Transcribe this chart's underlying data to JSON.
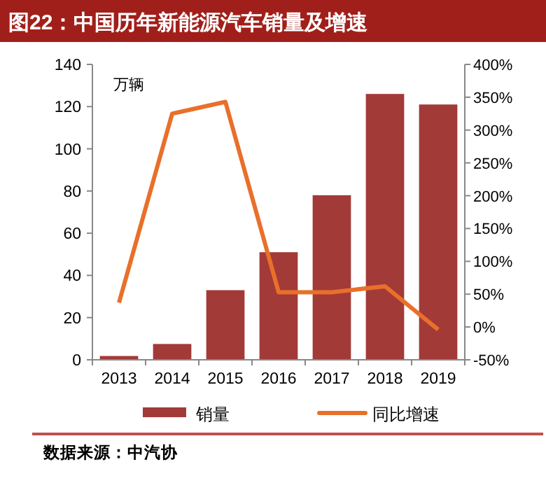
{
  "chart_data": {
    "type": "bar",
    "title": "图22：中国历年新能源汽车销量及增速",
    "ylabel": "万辆",
    "categories": [
      "2013",
      "2014",
      "2015",
      "2016",
      "2017",
      "2018",
      "2019"
    ],
    "series": [
      {
        "name": "销量",
        "color": "#a23a38",
        "values": [
          1.8,
          7.5,
          33,
          51,
          78,
          126,
          121
        ]
      },
      {
        "name": "同比增速",
        "type": "line",
        "axis": "y2",
        "color": "#e8702a",
        "values": [
          37,
          325,
          343,
          53,
          53,
          62,
          -4
        ]
      }
    ],
    "ylim": [
      0,
      140
    ],
    "yticks": [
      0,
      20,
      40,
      60,
      80,
      100,
      120,
      140
    ],
    "y2lim": [
      -50,
      400
    ],
    "y2ticks": [
      {
        "value": -50,
        "label": "-50%"
      },
      {
        "value": 0,
        "label": "0%"
      },
      {
        "value": 50,
        "label": "50%"
      },
      {
        "value": 100,
        "label": "100%"
      },
      {
        "value": 150,
        "label": "150%"
      },
      {
        "value": 200,
        "label": "200%"
      },
      {
        "value": 250,
        "label": "250%"
      },
      {
        "value": 300,
        "label": "300%"
      },
      {
        "value": 350,
        "label": "350%"
      },
      {
        "value": 400,
        "label": "400%"
      }
    ],
    "legend": "bottom",
    "grid": false,
    "annotations": [
      "数据来源：中汽协"
    ]
  }
}
